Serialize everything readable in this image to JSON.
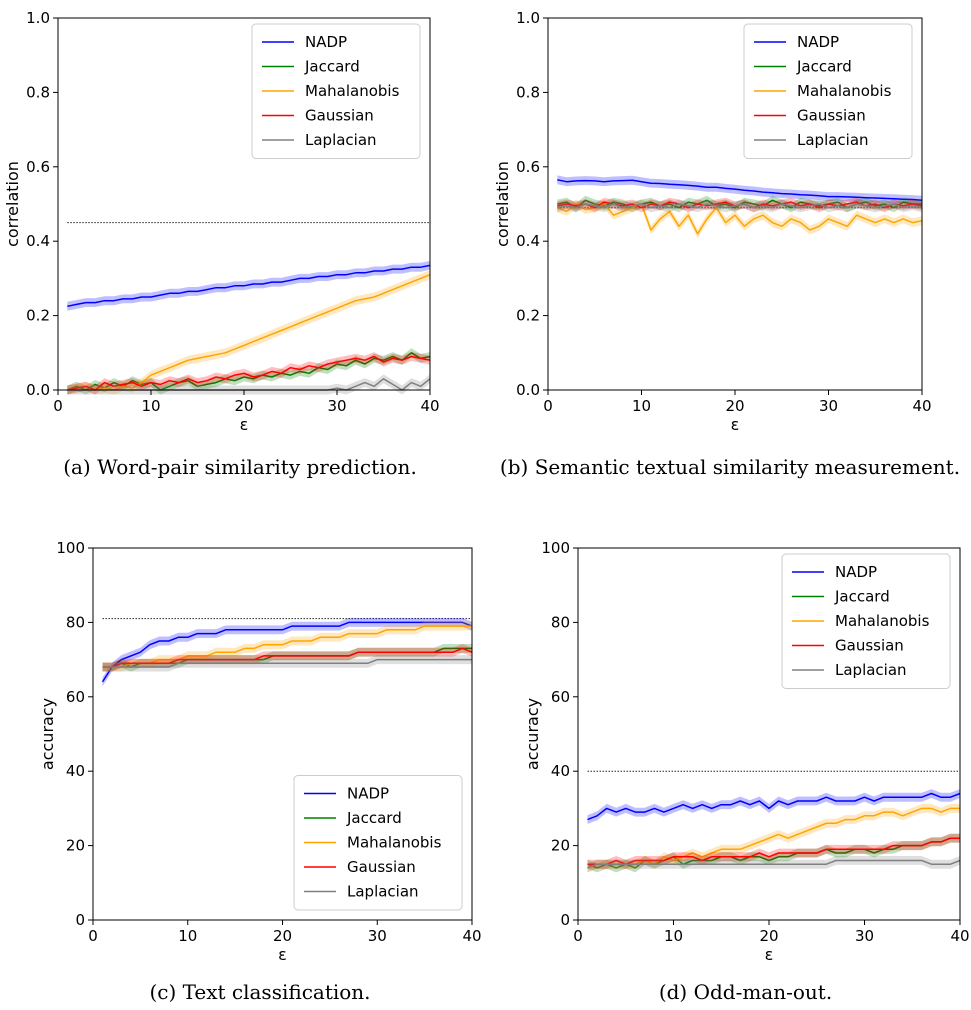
{
  "colors": {
    "NADP": "#0000ff",
    "Jaccard": "#008000",
    "Mahalanobis": "#ffa500",
    "Gaussian": "#ff0000",
    "Laplacian": "#808080"
  },
  "chart_data": [
    {
      "type": "line",
      "id": "a",
      "caption": "(a) Word-pair similarity prediction.",
      "xlabel": "ε",
      "ylabel": "correlation",
      "xlim": [
        0,
        40
      ],
      "ylim": [
        0,
        1.0
      ],
      "xticks": [
        "0",
        "10",
        "20",
        "30",
        "40"
      ],
      "yticks": [
        "0.0",
        "0.2",
        "0.4",
        "0.6",
        "0.8",
        "1.0"
      ],
      "legend_position": "top-right",
      "reference_line": 0.45,
      "x": [
        1,
        2,
        3,
        4,
        5,
        6,
        7,
        8,
        9,
        10,
        11,
        12,
        13,
        14,
        15,
        16,
        17,
        18,
        19,
        20,
        21,
        22,
        23,
        24,
        25,
        26,
        27,
        28,
        29,
        30,
        31,
        32,
        33,
        34,
        35,
        36,
        37,
        38,
        39,
        40
      ],
      "series": [
        {
          "name": "NADP",
          "values": [
            0.225,
            0.23,
            0.235,
            0.235,
            0.24,
            0.24,
            0.245,
            0.245,
            0.25,
            0.25,
            0.255,
            0.26,
            0.26,
            0.265,
            0.265,
            0.27,
            0.275,
            0.275,
            0.28,
            0.28,
            0.285,
            0.285,
            0.29,
            0.29,
            0.295,
            0.3,
            0.3,
            0.305,
            0.305,
            0.31,
            0.31,
            0.315,
            0.315,
            0.32,
            0.32,
            0.325,
            0.325,
            0.33,
            0.33,
            0.335
          ]
        },
        {
          "name": "Jaccard",
          "values": [
            0.0,
            0.01,
            0.0,
            0.015,
            0.005,
            0.02,
            0.01,
            0.025,
            0.015,
            0.02,
            0.0,
            0.01,
            0.02,
            0.025,
            0.01,
            0.015,
            0.02,
            0.03,
            0.025,
            0.035,
            0.03,
            0.04,
            0.035,
            0.045,
            0.04,
            0.05,
            0.045,
            0.06,
            0.055,
            0.07,
            0.065,
            0.08,
            0.07,
            0.085,
            0.08,
            0.09,
            0.08,
            0.1,
            0.085,
            0.09
          ]
        },
        {
          "name": "Mahalanobis",
          "values": [
            0.0,
            0.005,
            0.01,
            0.0,
            0.005,
            0.0,
            0.01,
            0.005,
            0.02,
            0.04,
            0.05,
            0.06,
            0.07,
            0.08,
            0.085,
            0.09,
            0.095,
            0.1,
            0.11,
            0.12,
            0.13,
            0.14,
            0.15,
            0.16,
            0.17,
            0.18,
            0.19,
            0.2,
            0.21,
            0.22,
            0.23,
            0.24,
            0.245,
            0.25,
            0.26,
            0.27,
            0.28,
            0.29,
            0.3,
            0.31
          ]
        },
        {
          "name": "Gaussian",
          "values": [
            0.0,
            0.005,
            0.01,
            0.0,
            0.02,
            0.01,
            0.015,
            0.02,
            0.01,
            0.02,
            0.015,
            0.025,
            0.02,
            0.03,
            0.02,
            0.025,
            0.035,
            0.03,
            0.04,
            0.045,
            0.035,
            0.04,
            0.05,
            0.045,
            0.06,
            0.055,
            0.065,
            0.06,
            0.07,
            0.075,
            0.08,
            0.085,
            0.08,
            0.09,
            0.075,
            0.085,
            0.08,
            0.09,
            0.085,
            0.08
          ]
        },
        {
          "name": "Laplacian",
          "values": [
            0.0,
            0.0,
            0.0,
            0.0,
            0.0,
            0.0,
            0.0,
            0.0,
            0.0,
            0.0,
            0.0,
            0.0,
            0.0,
            0.0,
            0.0,
            0.0,
            0.0,
            0.0,
            0.0,
            0.0,
            0.0,
            0.0,
            0.0,
            0.0,
            0.0,
            0.0,
            0.0,
            0.0,
            0.0,
            0.005,
            0.0,
            0.01,
            0.02,
            0.01,
            0.03,
            0.015,
            0.0,
            0.02,
            0.01,
            0.03
          ]
        }
      ]
    },
    {
      "type": "line",
      "id": "b",
      "caption": "(b) Semantic textual similarity measurement.",
      "xlabel": "ε",
      "ylabel": "correlation",
      "xlim": [
        0,
        40
      ],
      "ylim": [
        0,
        1.0
      ],
      "xticks": [
        "0",
        "10",
        "20",
        "30",
        "40"
      ],
      "yticks": [
        "0.0",
        "0.2",
        "0.4",
        "0.6",
        "0.8",
        "1.0"
      ],
      "legend_position": "top-right",
      "reference_line": 0.49,
      "x": [
        1,
        2,
        3,
        4,
        5,
        6,
        7,
        8,
        9,
        10,
        11,
        12,
        13,
        14,
        15,
        16,
        17,
        18,
        19,
        20,
        21,
        22,
        23,
        24,
        25,
        26,
        27,
        28,
        29,
        30,
        31,
        32,
        33,
        34,
        35,
        36,
        37,
        38,
        39,
        40
      ],
      "series": [
        {
          "name": "NADP",
          "values": [
            0.565,
            0.56,
            0.562,
            0.563,
            0.562,
            0.56,
            0.562,
            0.563,
            0.564,
            0.56,
            0.556,
            0.555,
            0.553,
            0.552,
            0.55,
            0.548,
            0.545,
            0.545,
            0.542,
            0.54,
            0.537,
            0.535,
            0.532,
            0.53,
            0.528,
            0.527,
            0.525,
            0.524,
            0.522,
            0.52,
            0.52,
            0.519,
            0.518,
            0.517,
            0.516,
            0.515,
            0.514,
            0.513,
            0.512,
            0.51
          ]
        },
        {
          "name": "Jaccard",
          "values": [
            0.5,
            0.505,
            0.49,
            0.51,
            0.5,
            0.495,
            0.505,
            0.5,
            0.49,
            0.5,
            0.505,
            0.495,
            0.5,
            0.49,
            0.505,
            0.5,
            0.51,
            0.495,
            0.5,
            0.49,
            0.505,
            0.5,
            0.495,
            0.51,
            0.5,
            0.49,
            0.505,
            0.5,
            0.495,
            0.5,
            0.505,
            0.49,
            0.5,
            0.505,
            0.495,
            0.5,
            0.49,
            0.505,
            0.5,
            0.5
          ]
        },
        {
          "name": "Mahalanobis",
          "values": [
            0.49,
            0.48,
            0.5,
            0.485,
            0.49,
            0.5,
            0.47,
            0.48,
            0.49,
            0.5,
            0.43,
            0.46,
            0.48,
            0.44,
            0.47,
            0.42,
            0.46,
            0.49,
            0.45,
            0.47,
            0.44,
            0.46,
            0.47,
            0.45,
            0.44,
            0.46,
            0.45,
            0.43,
            0.44,
            0.46,
            0.45,
            0.44,
            0.47,
            0.46,
            0.45,
            0.46,
            0.45,
            0.46,
            0.45,
            0.455
          ]
        },
        {
          "name": "Gaussian",
          "values": [
            0.495,
            0.5,
            0.495,
            0.5,
            0.49,
            0.505,
            0.5,
            0.495,
            0.5,
            0.49,
            0.5,
            0.495,
            0.505,
            0.5,
            0.49,
            0.5,
            0.495,
            0.5,
            0.505,
            0.495,
            0.5,
            0.49,
            0.5,
            0.495,
            0.5,
            0.505,
            0.495,
            0.5,
            0.49,
            0.5,
            0.495,
            0.5,
            0.505,
            0.495,
            0.5,
            0.49,
            0.5,
            0.495,
            0.5,
            0.495
          ]
        },
        {
          "name": "Laplacian",
          "values": [
            0.49,
            0.495,
            0.49,
            0.5,
            0.495,
            0.49,
            0.5,
            0.49,
            0.495,
            0.5,
            0.49,
            0.495,
            0.49,
            0.5,
            0.495,
            0.49,
            0.5,
            0.495,
            0.49,
            0.495,
            0.5,
            0.49,
            0.495,
            0.49,
            0.5,
            0.495,
            0.49,
            0.495,
            0.5,
            0.49,
            0.495,
            0.49,
            0.5,
            0.495,
            0.49,
            0.495,
            0.5,
            0.49,
            0.495,
            0.49
          ]
        }
      ]
    },
    {
      "type": "line",
      "id": "c",
      "caption": "(c) Text classification.",
      "xlabel": "ε",
      "ylabel": "accuracy",
      "xlim": [
        0,
        40
      ],
      "ylim": [
        0,
        100
      ],
      "xticks": [
        "0",
        "10",
        "20",
        "30",
        "40"
      ],
      "yticks": [
        "0",
        "20",
        "40",
        "60",
        "80",
        "100"
      ],
      "legend_position": "bottom-right",
      "reference_line": 81,
      "x": [
        1,
        2,
        3,
        4,
        5,
        6,
        7,
        8,
        9,
        10,
        11,
        12,
        13,
        14,
        15,
        16,
        17,
        18,
        19,
        20,
        21,
        22,
        23,
        24,
        25,
        26,
        27,
        28,
        29,
        30,
        31,
        32,
        33,
        34,
        35,
        36,
        37,
        38,
        39,
        40
      ],
      "series": [
        {
          "name": "NADP",
          "values": [
            64,
            68,
            70,
            71,
            72,
            74,
            75,
            75,
            76,
            76,
            77,
            77,
            77,
            78,
            78,
            78,
            78,
            78,
            78,
            78,
            79,
            79,
            79,
            79,
            79,
            79,
            80,
            80,
            80,
            80,
            80,
            80,
            80,
            80,
            80,
            80,
            80,
            80,
            80,
            79
          ]
        },
        {
          "name": "Jaccard",
          "values": [
            68,
            68,
            69,
            68,
            69,
            69,
            69,
            69,
            69,
            70,
            70,
            70,
            70,
            70,
            70,
            70,
            70,
            70,
            71,
            71,
            71,
            71,
            71,
            71,
            71,
            71,
            71,
            72,
            72,
            72,
            72,
            72,
            72,
            72,
            72,
            72,
            73,
            73,
            73,
            73
          ]
        },
        {
          "name": "Mahalanobis",
          "values": [
            68,
            68,
            68,
            69,
            69,
            69,
            70,
            70,
            70,
            71,
            71,
            71,
            72,
            72,
            72,
            73,
            73,
            74,
            74,
            74,
            75,
            75,
            75,
            76,
            76,
            76,
            77,
            77,
            77,
            77,
            78,
            78,
            78,
            78,
            79,
            79,
            79,
            79,
            79,
            79
          ]
        },
        {
          "name": "Gaussian",
          "values": [
            68,
            68,
            69,
            69,
            69,
            69,
            69,
            69,
            70,
            70,
            70,
            70,
            70,
            70,
            70,
            70,
            70,
            71,
            71,
            71,
            71,
            71,
            71,
            71,
            71,
            71,
            71,
            72,
            72,
            72,
            72,
            72,
            72,
            72,
            72,
            72,
            72,
            72,
            73,
            72
          ]
        },
        {
          "name": "Laplacian",
          "values": [
            68,
            68,
            68,
            68,
            68,
            68,
            68,
            68,
            69,
            69,
            69,
            69,
            69,
            69,
            69,
            69,
            69,
            69,
            69,
            69,
            69,
            69,
            69,
            69,
            69,
            69,
            69,
            69,
            69,
            70,
            70,
            70,
            70,
            70,
            70,
            70,
            70,
            70,
            70,
            70
          ]
        }
      ]
    },
    {
      "type": "line",
      "id": "d",
      "caption": "(d) Odd-man-out.",
      "xlabel": "ε",
      "ylabel": "accuracy",
      "xlim": [
        0,
        40
      ],
      "ylim": [
        0,
        100
      ],
      "xticks": [
        "0",
        "10",
        "20",
        "30",
        "40"
      ],
      "yticks": [
        "0",
        "20",
        "40",
        "60",
        "80",
        "100"
      ],
      "legend_position": "top-right",
      "reference_line": 40,
      "x": [
        1,
        2,
        3,
        4,
        5,
        6,
        7,
        8,
        9,
        10,
        11,
        12,
        13,
        14,
        15,
        16,
        17,
        18,
        19,
        20,
        21,
        22,
        23,
        24,
        25,
        26,
        27,
        28,
        29,
        30,
        31,
        32,
        33,
        34,
        35,
        36,
        37,
        38,
        39,
        40
      ],
      "series": [
        {
          "name": "NADP",
          "values": [
            27,
            28,
            30,
            29,
            30,
            29,
            29,
            30,
            29,
            30,
            31,
            30,
            31,
            30,
            31,
            31,
            32,
            31,
            32,
            30,
            32,
            31,
            32,
            32,
            32,
            33,
            32,
            32,
            32,
            33,
            32,
            33,
            33,
            33,
            33,
            33,
            34,
            33,
            33,
            34
          ]
        },
        {
          "name": "Jaccard",
          "values": [
            15,
            14,
            15,
            14,
            15,
            14,
            16,
            15,
            16,
            17,
            15,
            16,
            16,
            16,
            17,
            17,
            16,
            17,
            17,
            16,
            17,
            17,
            18,
            18,
            18,
            19,
            18,
            18,
            19,
            19,
            18,
            19,
            19,
            20,
            20,
            20,
            21,
            21,
            22,
            22
          ]
        },
        {
          "name": "Mahalanobis",
          "values": [
            14,
            15,
            15,
            15,
            15,
            15,
            16,
            15,
            17,
            16,
            17,
            18,
            17,
            18,
            19,
            19,
            19,
            20,
            21,
            22,
            23,
            22,
            23,
            24,
            25,
            26,
            26,
            27,
            27,
            28,
            28,
            29,
            29,
            28,
            29,
            30,
            30,
            29,
            30,
            30
          ]
        },
        {
          "name": "Gaussian",
          "values": [
            15,
            15,
            15,
            16,
            15,
            16,
            16,
            16,
            16,
            17,
            17,
            17,
            16,
            17,
            17,
            17,
            17,
            17,
            18,
            17,
            18,
            18,
            18,
            18,
            18,
            19,
            19,
            19,
            19,
            19,
            19,
            19,
            20,
            20,
            20,
            20,
            21,
            21,
            22,
            22
          ]
        },
        {
          "name": "Laplacian",
          "values": [
            14,
            15,
            15,
            15,
            15,
            15,
            15,
            15,
            15,
            15,
            15,
            15,
            15,
            15,
            15,
            15,
            15,
            15,
            15,
            15,
            15,
            15,
            15,
            15,
            15,
            15,
            16,
            16,
            16,
            16,
            16,
            16,
            16,
            16,
            16,
            16,
            15,
            15,
            15,
            16
          ]
        }
      ]
    }
  ]
}
